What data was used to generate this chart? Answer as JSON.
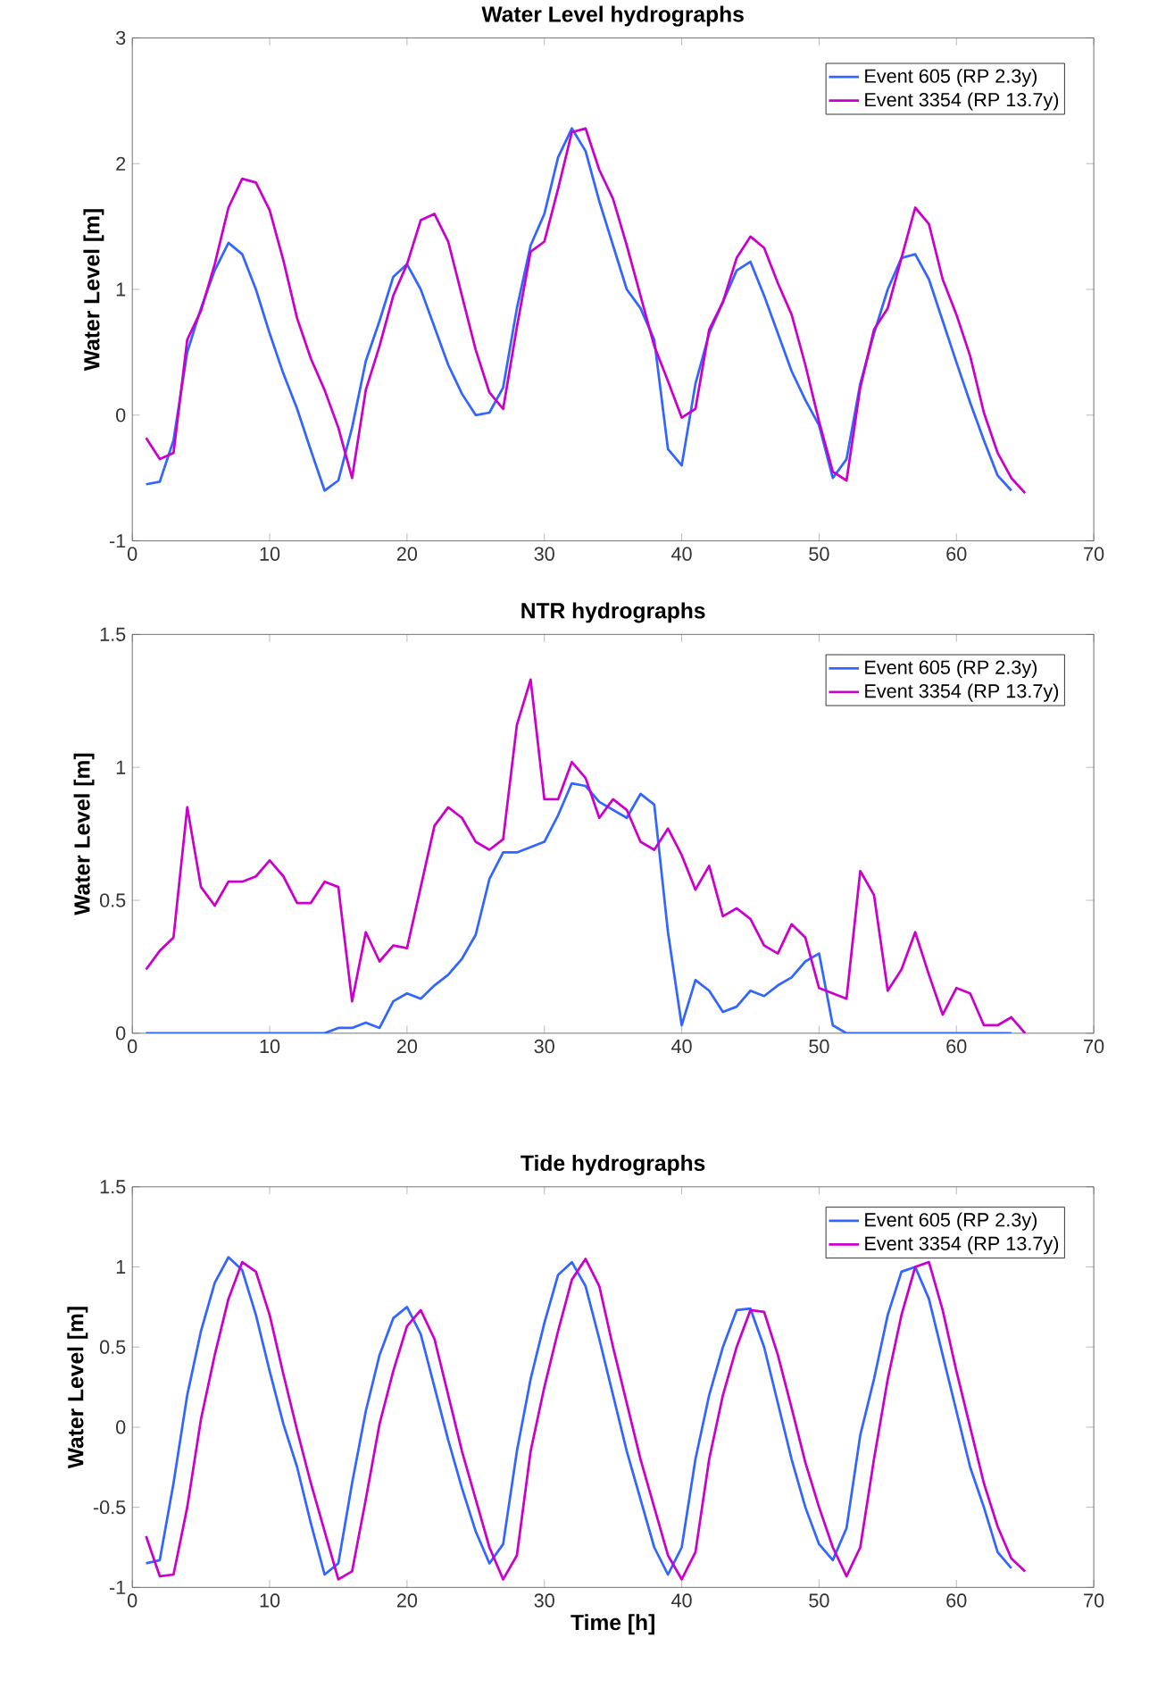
{
  "chart_data": [
    {
      "type": "line",
      "title": "Water Level hydrographs",
      "ylabel": "Water Level [m]",
      "x": [
        1,
        2,
        3,
        4,
        5,
        6,
        7,
        8,
        9,
        10,
        11,
        12,
        13,
        14,
        15,
        16,
        17,
        18,
        19,
        20,
        21,
        22,
        23,
        24,
        25,
        26,
        27,
        28,
        29,
        30,
        31,
        32,
        33,
        34,
        35,
        36,
        37,
        38,
        39,
        40,
        41,
        42,
        43,
        44,
        45,
        46,
        47,
        48,
        49,
        50,
        51,
        52,
        53,
        54,
        55,
        56,
        57,
        58,
        59,
        60,
        61,
        62,
        63,
        64,
        65
      ],
      "series": [
        {
          "name": "Event 605 (RP 2.3y)",
          "color": "#3366ff",
          "values": [
            -0.55,
            -0.53,
            -0.2,
            0.5,
            0.85,
            1.15,
            1.37,
            1.28,
            1.0,
            0.65,
            0.33,
            0.05,
            -0.28,
            -0.6,
            -0.52,
            -0.1,
            0.43,
            0.75,
            1.1,
            1.2,
            1.0,
            0.7,
            0.4,
            0.17,
            0.0,
            0.02,
            0.22,
            0.85,
            1.35,
            1.6,
            2.05,
            2.28,
            2.1,
            1.7,
            1.35,
            1.0,
            0.85,
            0.6,
            -0.27,
            -0.4,
            0.25,
            0.65,
            0.9,
            1.15,
            1.22,
            0.95,
            0.65,
            0.35,
            0.12,
            -0.08,
            -0.5,
            -0.35,
            0.25,
            0.65,
            1.0,
            1.25,
            1.28,
            1.08,
            0.75,
            0.42,
            0.1,
            -0.2,
            -0.48,
            -0.6,
            null
          ]
        },
        {
          "name": "Event 3354 (RP 13.7y)",
          "color": "#cc00cc",
          "values": [
            -0.18,
            -0.35,
            -0.3,
            0.6,
            0.83,
            1.2,
            1.65,
            1.88,
            1.85,
            1.63,
            1.23,
            0.77,
            0.45,
            0.2,
            -0.1,
            -0.5,
            0.2,
            0.55,
            0.95,
            1.2,
            1.55,
            1.6,
            1.38,
            0.95,
            0.52,
            0.18,
            0.05,
            0.7,
            1.3,
            1.38,
            1.8,
            2.25,
            2.28,
            1.95,
            1.72,
            1.35,
            0.95,
            0.55,
            0.27,
            -0.02,
            0.05,
            0.68,
            0.9,
            1.25,
            1.42,
            1.33,
            1.05,
            0.8,
            0.4,
            -0.05,
            -0.45,
            -0.52,
            0.22,
            0.68,
            0.85,
            1.25,
            1.65,
            1.52,
            1.08,
            0.8,
            0.47,
            0.02,
            -0.3,
            -0.5,
            -0.62
          ]
        }
      ],
      "xlim": [
        0,
        70
      ],
      "xticks": [
        0,
        10,
        20,
        30,
        40,
        50,
        60,
        70
      ],
      "ylim": [
        -1,
        3
      ],
      "yticks": [
        -1,
        0,
        1,
        2,
        3
      ],
      "legend": "top right",
      "grid": false
    },
    {
      "type": "line",
      "title": "NTR hydrographs",
      "ylabel": "Water Level [m]",
      "x": [
        1,
        2,
        3,
        4,
        5,
        6,
        7,
        8,
        9,
        10,
        11,
        12,
        13,
        14,
        15,
        16,
        17,
        18,
        19,
        20,
        21,
        22,
        23,
        24,
        25,
        26,
        27,
        28,
        29,
        30,
        31,
        32,
        33,
        34,
        35,
        36,
        37,
        38,
        39,
        40,
        41,
        42,
        43,
        44,
        45,
        46,
        47,
        48,
        49,
        50,
        51,
        52,
        53,
        54,
        55,
        56,
        57,
        58,
        59,
        60,
        61,
        62,
        63,
        64,
        65
      ],
      "series": [
        {
          "name": "Event 605 (RP 2.3y)",
          "color": "#3366ff",
          "values": [
            0,
            0,
            0,
            0,
            0,
            0,
            0,
            0,
            0,
            0,
            0,
            0,
            0,
            0,
            0.02,
            0.02,
            0.04,
            0.02,
            0.12,
            0.15,
            0.13,
            0.18,
            0.22,
            0.28,
            0.37,
            0.58,
            0.68,
            0.68,
            0.7,
            0.72,
            0.82,
            0.94,
            0.93,
            0.87,
            0.84,
            0.81,
            0.9,
            0.86,
            0.38,
            0.03,
            0.2,
            0.16,
            0.08,
            0.1,
            0.16,
            0.14,
            0.18,
            0.21,
            0.27,
            0.3,
            0.03,
            0,
            0,
            0,
            0,
            0,
            0,
            0,
            0,
            0,
            0,
            0,
            0,
            0,
            null
          ]
        },
        {
          "name": "Event 3354 (RP 13.7y)",
          "color": "#cc00cc",
          "values": [
            0.24,
            0.31,
            0.36,
            0.85,
            0.55,
            0.48,
            0.57,
            0.57,
            0.59,
            0.65,
            0.59,
            0.49,
            0.49,
            0.57,
            0.55,
            0.12,
            0.38,
            0.27,
            0.33,
            0.32,
            0.55,
            0.78,
            0.85,
            0.81,
            0.72,
            0.69,
            0.73,
            1.16,
            1.33,
            0.88,
            0.88,
            1.02,
            0.96,
            0.81,
            0.88,
            0.84,
            0.72,
            0.69,
            0.77,
            0.67,
            0.54,
            0.63,
            0.44,
            0.47,
            0.43,
            0.33,
            0.3,
            0.41,
            0.36,
            0.17,
            0.15,
            0.13,
            0.61,
            0.52,
            0.16,
            0.24,
            0.38,
            0.22,
            0.07,
            0.17,
            0.15,
            0.03,
            0.03,
            0.06,
            0
          ]
        }
      ],
      "xlim": [
        0,
        70
      ],
      "xticks": [
        0,
        10,
        20,
        30,
        40,
        50,
        60,
        70
      ],
      "ylim": [
        0,
        1.5
      ],
      "yticks": [
        0,
        0.5,
        1,
        1.5
      ],
      "legend": "top right",
      "grid": false
    },
    {
      "type": "line",
      "title": "Tide hydrographs",
      "ylabel": "Water Level [m]",
      "xlabel": "Time [h]",
      "x": [
        1,
        2,
        3,
        4,
        5,
        6,
        7,
        8,
        9,
        10,
        11,
        12,
        13,
        14,
        15,
        16,
        17,
        18,
        19,
        20,
        21,
        22,
        23,
        24,
        25,
        26,
        27,
        28,
        29,
        30,
        31,
        32,
        33,
        34,
        35,
        36,
        37,
        38,
        39,
        40,
        41,
        42,
        43,
        44,
        45,
        46,
        47,
        48,
        49,
        50,
        51,
        52,
        53,
        54,
        55,
        56,
        57,
        58,
        59,
        60,
        61,
        62,
        63,
        64,
        65
      ],
      "series": [
        {
          "name": "Event 605 (RP 2.3y)",
          "color": "#3366ff",
          "values": [
            -0.85,
            -0.83,
            -0.35,
            0.2,
            0.6,
            0.9,
            1.06,
            0.98,
            0.7,
            0.35,
            0.02,
            -0.25,
            -0.6,
            -0.92,
            -0.85,
            -0.35,
            0.1,
            0.45,
            0.68,
            0.75,
            0.58,
            0.25,
            -0.08,
            -0.38,
            -0.65,
            -0.85,
            -0.73,
            -0.15,
            0.3,
            0.65,
            0.95,
            1.03,
            0.88,
            0.55,
            0.2,
            -0.15,
            -0.45,
            -0.75,
            -0.92,
            -0.75,
            -0.2,
            0.2,
            0.5,
            0.73,
            0.74,
            0.5,
            0.15,
            -0.2,
            -0.5,
            -0.73,
            -0.83,
            -0.63,
            -0.05,
            0.3,
            0.7,
            0.97,
            1.0,
            0.8,
            0.45,
            0.1,
            -0.25,
            -0.5,
            -0.78,
            -0.88,
            null
          ]
        },
        {
          "name": "Event 3354 (RP 13.7y)",
          "color": "#cc00cc",
          "values": [
            -0.68,
            -0.93,
            -0.92,
            -0.5,
            0.05,
            0.45,
            0.8,
            1.03,
            0.97,
            0.7,
            0.33,
            -0.02,
            -0.35,
            -0.65,
            -0.95,
            -0.9,
            -0.45,
            0.02,
            0.35,
            0.63,
            0.73,
            0.55,
            0.2,
            -0.15,
            -0.45,
            -0.75,
            -0.95,
            -0.8,
            -0.15,
            0.25,
            0.6,
            0.92,
            1.05,
            0.88,
            0.5,
            0.15,
            -0.2,
            -0.5,
            -0.8,
            -0.95,
            -0.78,
            -0.2,
            0.2,
            0.5,
            0.73,
            0.72,
            0.45,
            0.12,
            -0.22,
            -0.5,
            -0.75,
            -0.93,
            -0.75,
            -0.2,
            0.3,
            0.7,
            1.0,
            1.03,
            0.73,
            0.35,
            0.0,
            -0.35,
            -0.62,
            -0.82,
            -0.9
          ]
        }
      ],
      "xlim": [
        0,
        70
      ],
      "xticks": [
        0,
        10,
        20,
        30,
        40,
        50,
        60,
        70
      ],
      "ylim": [
        -1,
        1.5
      ],
      "yticks": [
        -1,
        -0.5,
        0,
        0.5,
        1,
        1.5
      ],
      "legend": "top right",
      "grid": false
    }
  ]
}
